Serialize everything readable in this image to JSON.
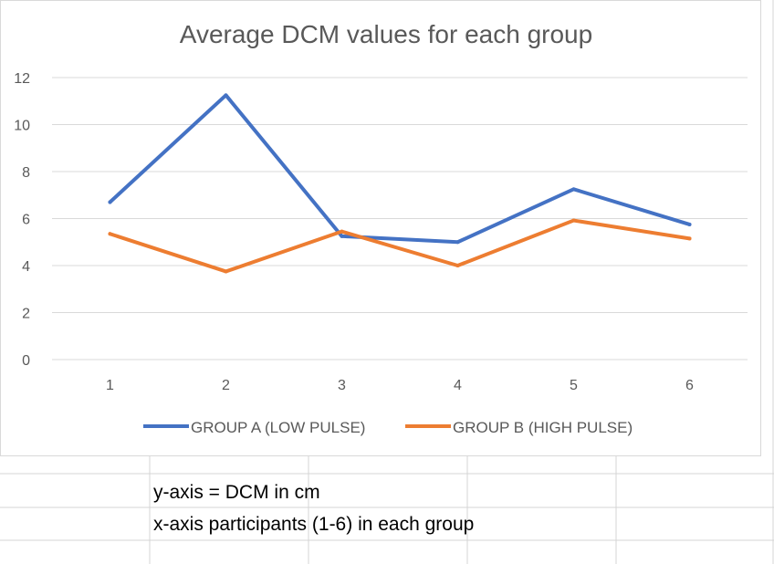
{
  "chart_data": {
    "type": "line",
    "title": "Average DCM values for each group",
    "categories": [
      "1",
      "2",
      "3",
      "4",
      "5",
      "6"
    ],
    "ylim": [
      0,
      12
    ],
    "yticks": [
      0,
      2,
      4,
      6,
      8,
      10,
      12
    ],
    "grid": true,
    "legend": "bottom",
    "series": [
      {
        "name": "GROUP A (LOW PULSE)",
        "color": "#4472C4",
        "values": [
          6.7,
          11.25,
          5.25,
          5.0,
          7.25,
          5.75
        ]
      },
      {
        "name": "GROUP B (HIGH PULSE)",
        "color": "#ED7D31",
        "values": [
          5.35,
          3.75,
          5.45,
          4.0,
          5.92,
          5.15
        ]
      }
    ]
  },
  "notes": {
    "y_axis": "y-axis = DCM in cm",
    "x_axis": "x-axis participants (1-6) in each group"
  }
}
